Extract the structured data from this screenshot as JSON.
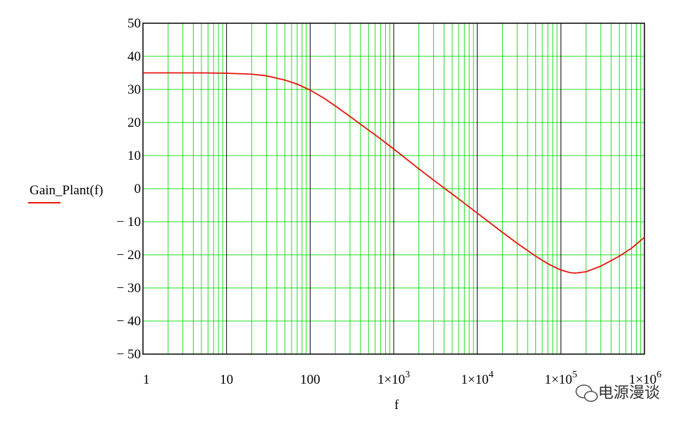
{
  "chart_data": {
    "type": "line",
    "x_scale": "log",
    "xlim": [
      1,
      1000000
    ],
    "ylim": [
      -50,
      50
    ],
    "grid": true,
    "xlabel": "f",
    "ylabel": "",
    "legend": {
      "label": "Gain_Plant(f)",
      "placement": "left"
    },
    "y_ticks": [
      "50",
      "40",
      "30",
      "20",
      "10",
      "0",
      "− 10",
      "− 20",
      "− 30",
      "− 40",
      "− 50"
    ],
    "x_ticks": [
      {
        "value": 1,
        "base": "1",
        "exp": ""
      },
      {
        "value": 10,
        "base": "10",
        "exp": ""
      },
      {
        "value": 100,
        "base": "100",
        "exp": ""
      },
      {
        "value": 1000,
        "base": "1×10",
        "exp": "3"
      },
      {
        "value": 10000,
        "base": "1×10",
        "exp": "4"
      },
      {
        "value": 100000,
        "base": "1×10",
        "exp": "5"
      },
      {
        "value": 1000000,
        "base": "1×10",
        "exp": "6"
      }
    ],
    "series": [
      {
        "name": "Gain_Plant(f)",
        "color": "#e8150c",
        "x": [
          1,
          3,
          5,
          10,
          20,
          30,
          50,
          70,
          100,
          150,
          200,
          300,
          500,
          700,
          1000,
          2000,
          3000,
          5000,
          7000,
          10000,
          20000,
          30000,
          50000,
          70000,
          100000,
          130000,
          150000,
          200000,
          300000,
          500000,
          700000,
          1000000
        ],
        "y": [
          35,
          35,
          35,
          34.9,
          34.6,
          34.1,
          32.8,
          31.6,
          29.8,
          27.2,
          25.0,
          21.8,
          17.7,
          15.0,
          12.0,
          6.0,
          2.6,
          -1.6,
          -4.4,
          -7.4,
          -13.2,
          -16.5,
          -20.4,
          -22.7,
          -24.6,
          -25.4,
          -25.5,
          -25.1,
          -23.4,
          -20.4,
          -18.0,
          -14.7
        ]
      }
    ]
  },
  "watermark": {
    "text": "电源漫谈",
    "icon": "wechat-icon"
  }
}
